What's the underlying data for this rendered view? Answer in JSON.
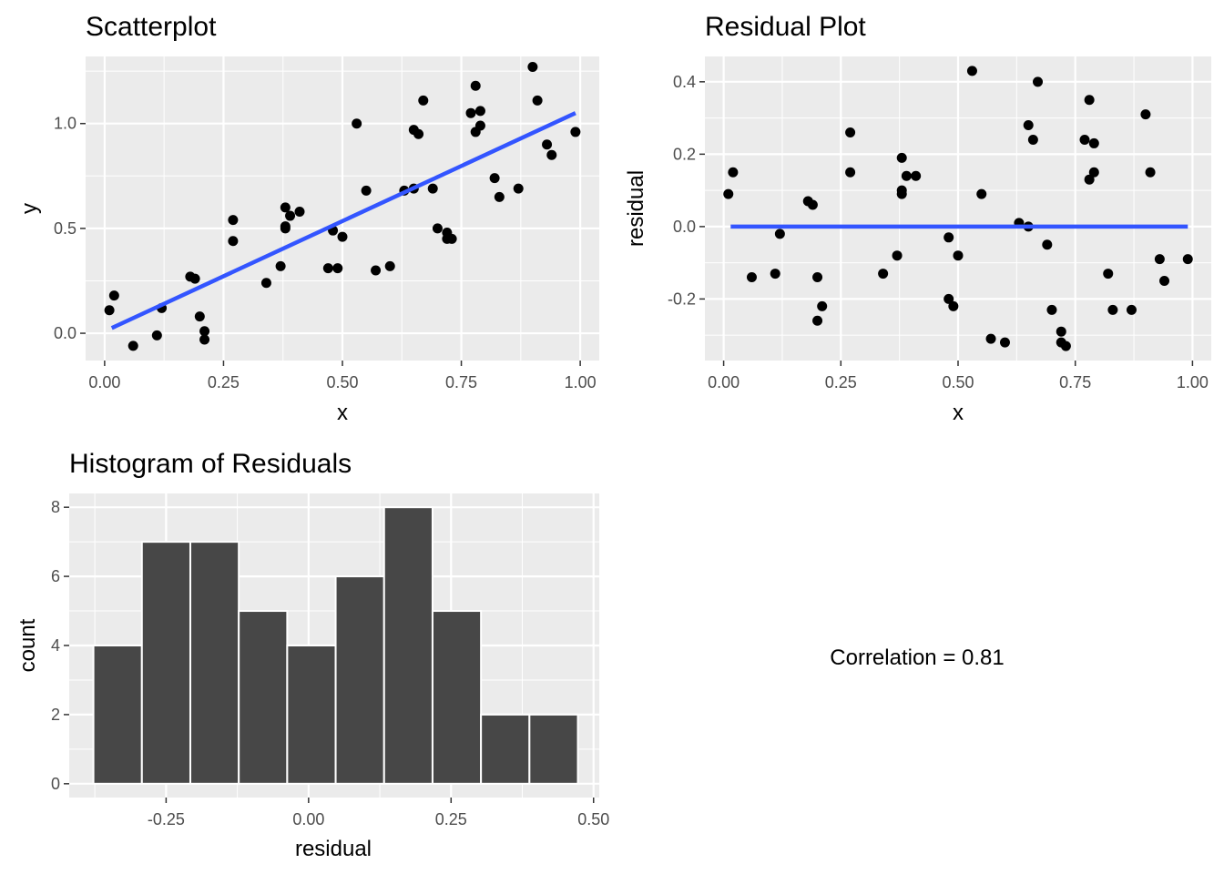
{
  "chart_data": [
    {
      "type": "scatter",
      "title": "Scatterplot",
      "xlabel": "x",
      "ylabel": "y",
      "xlim": [
        -0.04,
        1.04
      ],
      "ylim": [
        -0.13,
        1.32
      ],
      "xticks": [
        0,
        0.25,
        0.5,
        0.75,
        1
      ],
      "xtick_labels": [
        "0.00",
        "0.25",
        "0.50",
        "0.75",
        "1.00"
      ],
      "yticks": [
        0,
        0.5,
        1
      ],
      "ytick_labels": [
        "0.0",
        "0.5",
        "1.0"
      ],
      "grid": true,
      "point_color": "#000000",
      "line_color": "#3355ff",
      "points": [
        [
          0.01,
          0.11
        ],
        [
          0.02,
          0.18
        ],
        [
          0.06,
          -0.06
        ],
        [
          0.11,
          -0.01
        ],
        [
          0.12,
          0.12
        ],
        [
          0.18,
          0.27
        ],
        [
          0.19,
          0.26
        ],
        [
          0.2,
          0.08
        ],
        [
          0.21,
          -0.03
        ],
        [
          0.21,
          0.01
        ],
        [
          0.27,
          0.54
        ],
        [
          0.27,
          0.44
        ],
        [
          0.34,
          0.24
        ],
        [
          0.37,
          0.32
        ],
        [
          0.38,
          0.6
        ],
        [
          0.38,
          0.51
        ],
        [
          0.38,
          0.5
        ],
        [
          0.39,
          0.56
        ],
        [
          0.41,
          0.58
        ],
        [
          0.47,
          0.31
        ],
        [
          0.48,
          0.49
        ],
        [
          0.49,
          0.31
        ],
        [
          0.5,
          0.46
        ],
        [
          0.53,
          1.0
        ],
        [
          0.55,
          0.68
        ],
        [
          0.57,
          0.3
        ],
        [
          0.6,
          0.32
        ],
        [
          0.63,
          0.68
        ],
        [
          0.65,
          0.69
        ],
        [
          0.65,
          0.97
        ],
        [
          0.66,
          0.95
        ],
        [
          0.67,
          1.11
        ],
        [
          0.69,
          0.69
        ],
        [
          0.7,
          0.5
        ],
        [
          0.72,
          0.48
        ],
        [
          0.72,
          0.45
        ],
        [
          0.73,
          0.45
        ],
        [
          0.77,
          1.05
        ],
        [
          0.78,
          0.96
        ],
        [
          0.78,
          1.18
        ],
        [
          0.79,
          1.06
        ],
        [
          0.79,
          0.99
        ],
        [
          0.82,
          0.74
        ],
        [
          0.83,
          0.65
        ],
        [
          0.87,
          0.69
        ],
        [
          0.9,
          1.27
        ],
        [
          0.91,
          1.11
        ],
        [
          0.93,
          0.9
        ],
        [
          0.94,
          0.85
        ],
        [
          0.99,
          0.96
        ]
      ],
      "fit_line": [
        [
          0.015,
          0.025
        ],
        [
          0.99,
          1.05
        ]
      ]
    },
    {
      "type": "scatter",
      "title": "Residual Plot",
      "xlabel": "x",
      "ylabel": "residual",
      "xlim": [
        -0.04,
        1.04
      ],
      "ylim": [
        -0.37,
        0.47
      ],
      "xticks": [
        0,
        0.25,
        0.5,
        0.75,
        1
      ],
      "xtick_labels": [
        "0.00",
        "0.25",
        "0.50",
        "0.75",
        "1.00"
      ],
      "yticks": [
        -0.2,
        0,
        0.2,
        0.4
      ],
      "ytick_labels": [
        "-0.2",
        "0.0",
        "0.2",
        "0.4"
      ],
      "grid": true,
      "point_color": "#000000",
      "line_color": "#3355ff",
      "points": [
        [
          0.01,
          0.09
        ],
        [
          0.02,
          0.15
        ],
        [
          0.06,
          -0.14
        ],
        [
          0.11,
          -0.13
        ],
        [
          0.12,
          -0.02
        ],
        [
          0.18,
          0.07
        ],
        [
          0.19,
          0.06
        ],
        [
          0.2,
          -0.14
        ],
        [
          0.2,
          -0.26
        ],
        [
          0.21,
          -0.22
        ],
        [
          0.27,
          0.26
        ],
        [
          0.27,
          0.15
        ],
        [
          0.34,
          -0.13
        ],
        [
          0.37,
          -0.08
        ],
        [
          0.38,
          0.19
        ],
        [
          0.38,
          0.09
        ],
        [
          0.38,
          0.1
        ],
        [
          0.39,
          0.14
        ],
        [
          0.41,
          0.14
        ],
        [
          0.48,
          -0.2
        ],
        [
          0.48,
          -0.03
        ],
        [
          0.49,
          -0.22
        ],
        [
          0.5,
          -0.08
        ],
        [
          0.53,
          0.43
        ],
        [
          0.55,
          0.09
        ],
        [
          0.57,
          -0.31
        ],
        [
          0.6,
          -0.32
        ],
        [
          0.63,
          0.01
        ],
        [
          0.65,
          0.0
        ],
        [
          0.65,
          0.28
        ],
        [
          0.66,
          0.24
        ],
        [
          0.67,
          0.4
        ],
        [
          0.69,
          -0.05
        ],
        [
          0.7,
          -0.23
        ],
        [
          0.72,
          -0.32
        ],
        [
          0.72,
          -0.29
        ],
        [
          0.73,
          -0.33
        ],
        [
          0.77,
          0.24
        ],
        [
          0.78,
          0.13
        ],
        [
          0.78,
          0.35
        ],
        [
          0.79,
          0.23
        ],
        [
          0.79,
          0.15
        ],
        [
          0.82,
          -0.13
        ],
        [
          0.83,
          -0.23
        ],
        [
          0.87,
          -0.23
        ],
        [
          0.9,
          0.31
        ],
        [
          0.91,
          0.15
        ],
        [
          0.93,
          -0.09
        ],
        [
          0.94,
          -0.15
        ],
        [
          0.99,
          -0.09
        ]
      ],
      "fit_line": [
        [
          0.015,
          0
        ],
        [
          0.99,
          0
        ]
      ]
    },
    {
      "type": "bar",
      "title": "Histogram of Residuals",
      "xlabel": "residual",
      "ylabel": "count",
      "xlim": [
        -0.42,
        0.51
      ],
      "ylim": [
        -0.4,
        8.4
      ],
      "xticks": [
        -0.25,
        0,
        0.25,
        0.5
      ],
      "xtick_labels": [
        "-0.25",
        "0.00",
        "0.25",
        "0.50"
      ],
      "yticks": [
        0,
        2,
        4,
        6,
        8
      ],
      "ytick_labels": [
        "0",
        "2",
        "4",
        "6",
        "8"
      ],
      "grid": true,
      "bar_color": "#474747",
      "bin_edges": [
        -0.3775,
        -0.2925,
        -0.2075,
        -0.1225,
        -0.0375,
        0.0475,
        0.1325,
        0.2175,
        0.3025,
        0.3875,
        0.4725
      ],
      "values": [
        4,
        7,
        7,
        5,
        4,
        6,
        8,
        5,
        2,
        2
      ]
    }
  ],
  "annotation": {
    "text": "Correlation = 0.81"
  }
}
